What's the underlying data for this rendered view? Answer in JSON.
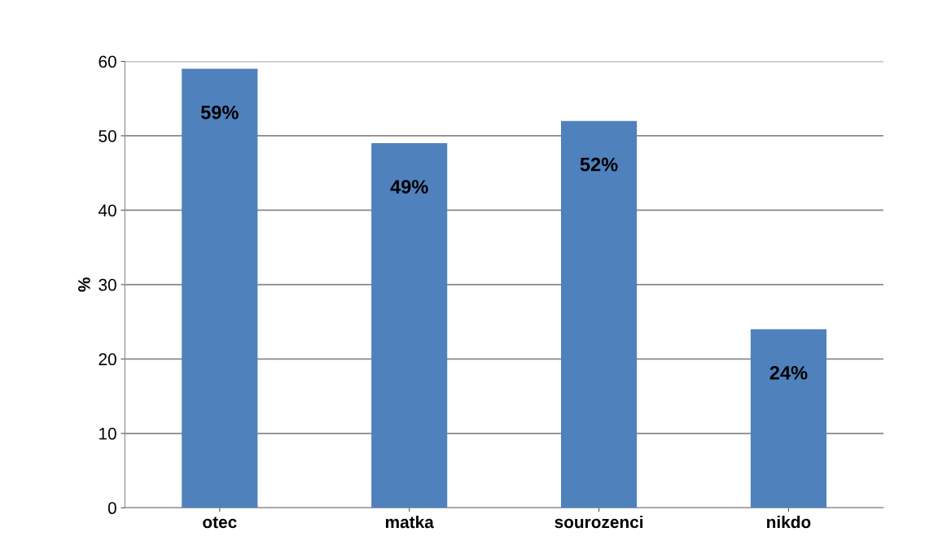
{
  "chart_data": {
    "type": "bar",
    "ylabel": "%",
    "categories": [
      "otec",
      "matka",
      "sourozenci",
      "nikdo"
    ],
    "values": [
      59,
      49,
      52,
      24
    ],
    "value_labels": [
      "59%",
      "49%",
      "52%",
      "24%"
    ],
    "color": "#4f81bd",
    "ylim": [
      0,
      60
    ],
    "yticks": [
      0,
      10,
      20,
      30,
      40,
      50,
      60
    ],
    "grid": "y"
  }
}
